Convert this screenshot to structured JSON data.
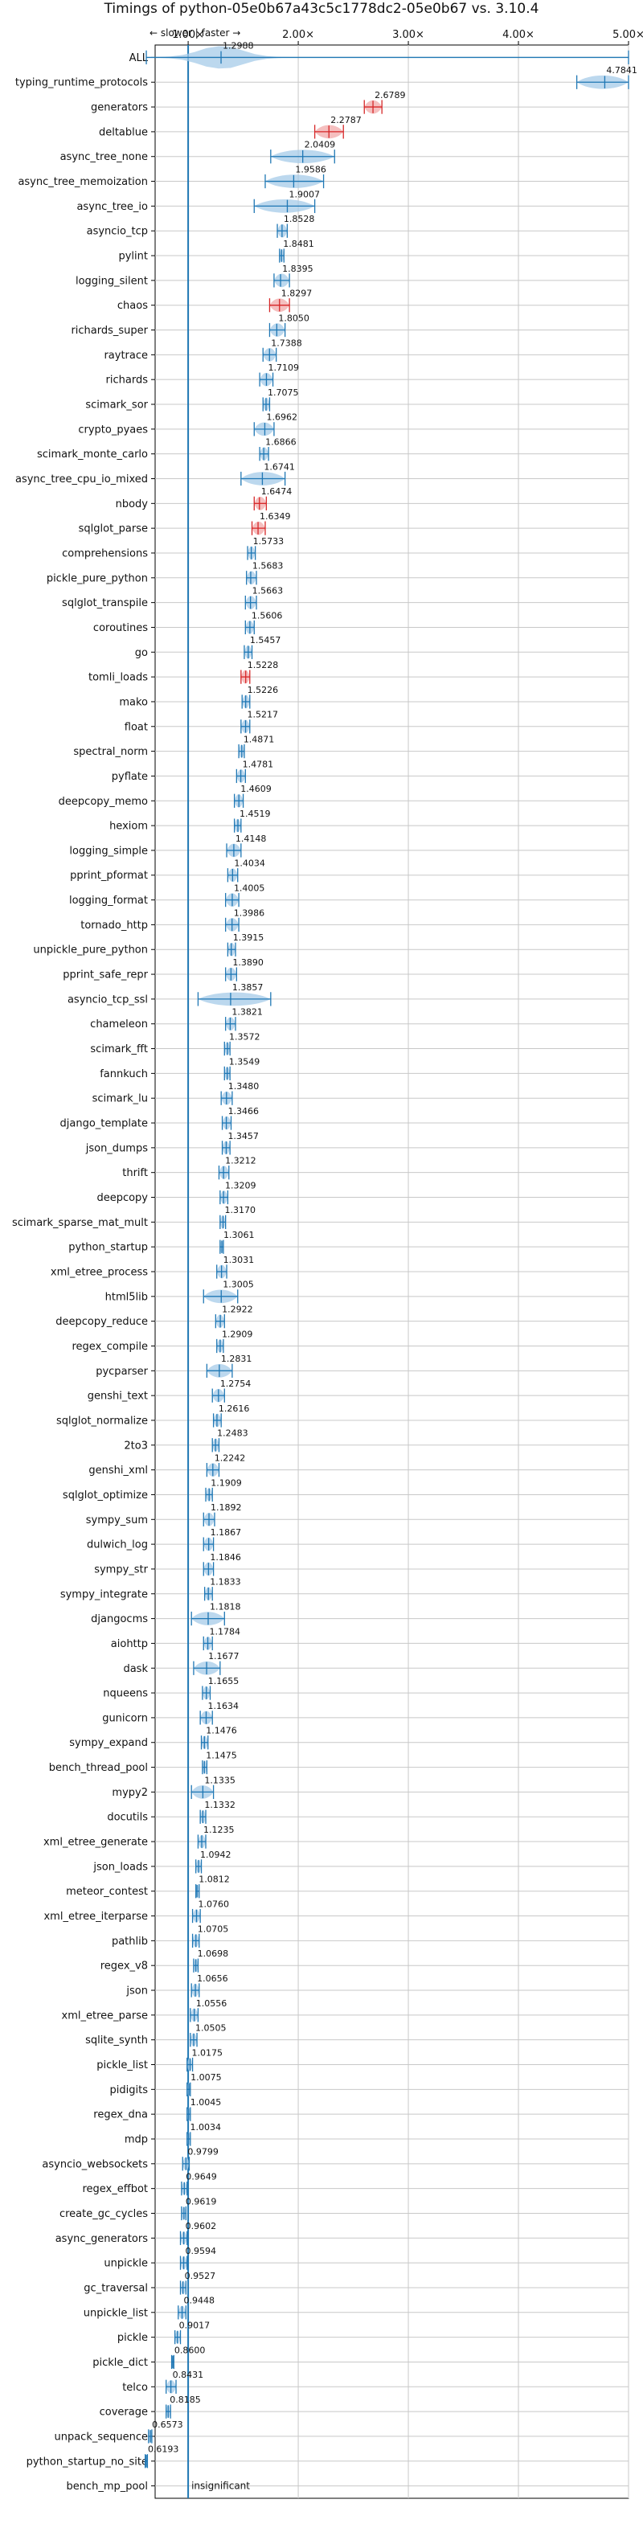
{
  "title": "Timings of python-05e0b67a43c5c1778dc2-05e0b67 vs. 3.10.4",
  "direction_label": "← slower | faster →",
  "chart_data": {
    "type": "violin",
    "title": "Timings of python-05e0b67a43c5c1778dc2-05e0b67 vs. 3.10.4",
    "orientation": "horizontal",
    "xlabel": "",
    "ylabel": "",
    "xlim": [
      0.7,
      5.0
    ],
    "x_ticks": [
      1.0,
      2.0,
      3.0,
      4.0,
      5.0
    ],
    "x_tick_labels": [
      "1.00×",
      "2.00×",
      "3.00×",
      "4.00×",
      "5.00×"
    ],
    "x_axis_position": "top",
    "reference_line": 1.0,
    "grid": true,
    "colors": {
      "normal": "#1f77b4",
      "slower": "#d62728",
      "fill": "#a6cbe8",
      "fill_slower": "#f2a9a9"
    },
    "benchmarks": [
      {
        "name": "ALL",
        "value": 1.2988,
        "label": "1.2988",
        "min": 0.62,
        "max": 5.0,
        "violin": "all"
      },
      {
        "name": "typing_runtime_protocols",
        "value": 4.7841,
        "label": "4.7841",
        "min": 4.53,
        "max": 5.0
      },
      {
        "name": "generators",
        "value": 2.6789,
        "label": "2.6789",
        "min": 2.6,
        "max": 2.76,
        "slower": true
      },
      {
        "name": "deltablue",
        "value": 2.2787,
        "label": "2.2787",
        "min": 2.15,
        "max": 2.41,
        "slower": true
      },
      {
        "name": "async_tree_none",
        "value": 2.0409,
        "label": "2.0409",
        "min": 1.75,
        "max": 2.33
      },
      {
        "name": "async_tree_memoization",
        "value": 1.9586,
        "label": "1.9586",
        "min": 1.7,
        "max": 2.23
      },
      {
        "name": "async_tree_io",
        "value": 1.9007,
        "label": "1.9007",
        "min": 1.6,
        "max": 2.15
      },
      {
        "name": "asyncio_tcp",
        "value": 1.8528,
        "label": "1.8528",
        "min": 1.81,
        "max": 1.9
      },
      {
        "name": "pylint",
        "value": 1.8481,
        "label": "1.8481",
        "min": 1.83,
        "max": 1.87
      },
      {
        "name": "logging_silent",
        "value": 1.8395,
        "label": "1.8395",
        "min": 1.78,
        "max": 1.92
      },
      {
        "name": "chaos",
        "value": 1.8297,
        "label": "1.8297",
        "min": 1.74,
        "max": 1.92,
        "slower": true
      },
      {
        "name": "richards_super",
        "value": 1.805,
        "label": "1.8050",
        "min": 1.74,
        "max": 1.88
      },
      {
        "name": "raytrace",
        "value": 1.7388,
        "label": "1.7388",
        "min": 1.68,
        "max": 1.8
      },
      {
        "name": "richards",
        "value": 1.7109,
        "label": "1.7109",
        "min": 1.65,
        "max": 1.77
      },
      {
        "name": "scimark_sor",
        "value": 1.7075,
        "label": "1.7075",
        "min": 1.68,
        "max": 1.74
      },
      {
        "name": "crypto_pyaes",
        "value": 1.6962,
        "label": "1.6962",
        "min": 1.6,
        "max": 1.78
      },
      {
        "name": "scimark_monte_carlo",
        "value": 1.6866,
        "label": "1.6866",
        "min": 1.65,
        "max": 1.73
      },
      {
        "name": "async_tree_cpu_io_mixed",
        "value": 1.6741,
        "label": "1.6741",
        "min": 1.48,
        "max": 1.88
      },
      {
        "name": "nbody",
        "value": 1.6474,
        "label": "1.6474",
        "min": 1.6,
        "max": 1.71,
        "slower": true
      },
      {
        "name": "sqlglot_parse",
        "value": 1.6349,
        "label": "1.6349",
        "min": 1.58,
        "max": 1.7,
        "slower": true
      },
      {
        "name": "comprehensions",
        "value": 1.5733,
        "label": "1.5733",
        "min": 1.54,
        "max": 1.61
      },
      {
        "name": "pickle_pure_python",
        "value": 1.5683,
        "label": "1.5683",
        "min": 1.53,
        "max": 1.62
      },
      {
        "name": "sqlglot_transpile",
        "value": 1.5663,
        "label": "1.5663",
        "min": 1.52,
        "max": 1.62
      },
      {
        "name": "coroutines",
        "value": 1.5606,
        "label": "1.5606",
        "min": 1.52,
        "max": 1.6
      },
      {
        "name": "go",
        "value": 1.5457,
        "label": "1.5457",
        "min": 1.51,
        "max": 1.58
      },
      {
        "name": "tomli_loads",
        "value": 1.5228,
        "label": "1.5228",
        "min": 1.48,
        "max": 1.56,
        "slower": true
      },
      {
        "name": "mako",
        "value": 1.5226,
        "label": "1.5226",
        "min": 1.49,
        "max": 1.56
      },
      {
        "name": "float",
        "value": 1.5217,
        "label": "1.5217",
        "min": 1.48,
        "max": 1.56
      },
      {
        "name": "spectral_norm",
        "value": 1.4871,
        "label": "1.4871",
        "min": 1.46,
        "max": 1.51
      },
      {
        "name": "pyflate",
        "value": 1.4781,
        "label": "1.4781",
        "min": 1.44,
        "max": 1.52
      },
      {
        "name": "deepcopy_memo",
        "value": 1.4609,
        "label": "1.4609",
        "min": 1.42,
        "max": 1.5
      },
      {
        "name": "hexiom",
        "value": 1.4519,
        "label": "1.4519",
        "min": 1.42,
        "max": 1.48
      },
      {
        "name": "logging_simple",
        "value": 1.4148,
        "label": "1.4148",
        "min": 1.35,
        "max": 1.48
      },
      {
        "name": "pprint_pformat",
        "value": 1.4034,
        "label": "1.4034",
        "min": 1.36,
        "max": 1.45
      },
      {
        "name": "logging_format",
        "value": 1.4005,
        "label": "1.4005",
        "min": 1.34,
        "max": 1.46
      },
      {
        "name": "tornado_http",
        "value": 1.3986,
        "label": "1.3986",
        "min": 1.34,
        "max": 1.46
      },
      {
        "name": "unpickle_pure_python",
        "value": 1.3915,
        "label": "1.3915",
        "min": 1.36,
        "max": 1.43
      },
      {
        "name": "pprint_safe_repr",
        "value": 1.389,
        "label": "1.3890",
        "min": 1.34,
        "max": 1.44
      },
      {
        "name": "asyncio_tcp_ssl",
        "value": 1.3857,
        "label": "1.3857",
        "min": 1.09,
        "max": 1.75
      },
      {
        "name": "chameleon",
        "value": 1.3821,
        "label": "1.3821",
        "min": 1.34,
        "max": 1.43
      },
      {
        "name": "scimark_fft",
        "value": 1.3572,
        "label": "1.3572",
        "min": 1.33,
        "max": 1.38
      },
      {
        "name": "fannkuch",
        "value": 1.3549,
        "label": "1.3549",
        "min": 1.33,
        "max": 1.38
      },
      {
        "name": "scimark_lu",
        "value": 1.348,
        "label": "1.3480",
        "min": 1.3,
        "max": 1.4
      },
      {
        "name": "django_template",
        "value": 1.3466,
        "label": "1.3466",
        "min": 1.31,
        "max": 1.39
      },
      {
        "name": "json_dumps",
        "value": 1.3457,
        "label": "1.3457",
        "min": 1.31,
        "max": 1.38
      },
      {
        "name": "thrift",
        "value": 1.3212,
        "label": "1.3212",
        "min": 1.28,
        "max": 1.37
      },
      {
        "name": "deepcopy",
        "value": 1.3209,
        "label": "1.3209",
        "min": 1.29,
        "max": 1.36
      },
      {
        "name": "scimark_sparse_mat_mult",
        "value": 1.317,
        "label": "1.3170",
        "min": 1.29,
        "max": 1.34
      },
      {
        "name": "python_startup",
        "value": 1.3061,
        "label": "1.3061",
        "min": 1.29,
        "max": 1.32
      },
      {
        "name": "xml_etree_process",
        "value": 1.3031,
        "label": "1.3031",
        "min": 1.26,
        "max": 1.35
      },
      {
        "name": "html5lib",
        "value": 1.3005,
        "label": "1.3005",
        "min": 1.14,
        "max": 1.45
      },
      {
        "name": "deepcopy_reduce",
        "value": 1.2922,
        "label": "1.2922",
        "min": 1.25,
        "max": 1.33
      },
      {
        "name": "regex_compile",
        "value": 1.2909,
        "label": "1.2909",
        "min": 1.26,
        "max": 1.32
      },
      {
        "name": "pycparser",
        "value": 1.2831,
        "label": "1.2831",
        "min": 1.17,
        "max": 1.4
      },
      {
        "name": "genshi_text",
        "value": 1.2754,
        "label": "1.2754",
        "min": 1.22,
        "max": 1.33
      },
      {
        "name": "sqlglot_normalize",
        "value": 1.2616,
        "label": "1.2616",
        "min": 1.23,
        "max": 1.3
      },
      {
        "name": "2to3",
        "value": 1.2483,
        "label": "1.2483",
        "min": 1.22,
        "max": 1.28
      },
      {
        "name": "genshi_xml",
        "value": 1.2242,
        "label": "1.2242",
        "min": 1.17,
        "max": 1.28
      },
      {
        "name": "sqlglot_optimize",
        "value": 1.1909,
        "label": "1.1909",
        "min": 1.16,
        "max": 1.22
      },
      {
        "name": "sympy_sum",
        "value": 1.1892,
        "label": "1.1892",
        "min": 1.14,
        "max": 1.24
      },
      {
        "name": "dulwich_log",
        "value": 1.1867,
        "label": "1.1867",
        "min": 1.14,
        "max": 1.23
      },
      {
        "name": "sympy_str",
        "value": 1.1846,
        "label": "1.1846",
        "min": 1.14,
        "max": 1.23
      },
      {
        "name": "sympy_integrate",
        "value": 1.1833,
        "label": "1.1833",
        "min": 1.15,
        "max": 1.22
      },
      {
        "name": "djangocms",
        "value": 1.1818,
        "label": "1.1818",
        "min": 1.03,
        "max": 1.33
      },
      {
        "name": "aiohttp",
        "value": 1.1784,
        "label": "1.1784",
        "min": 1.14,
        "max": 1.22
      },
      {
        "name": "dask",
        "value": 1.1677,
        "label": "1.1677",
        "min": 1.05,
        "max": 1.29
      },
      {
        "name": "nqueens",
        "value": 1.1655,
        "label": "1.1655",
        "min": 1.13,
        "max": 1.2
      },
      {
        "name": "gunicorn",
        "value": 1.1634,
        "label": "1.1634",
        "min": 1.11,
        "max": 1.22
      },
      {
        "name": "sympy_expand",
        "value": 1.1476,
        "label": "1.1476",
        "min": 1.12,
        "max": 1.18
      },
      {
        "name": "bench_thread_pool",
        "value": 1.1475,
        "label": "1.1475",
        "min": 1.13,
        "max": 1.17
      },
      {
        "name": "mypy2",
        "value": 1.1335,
        "label": "1.1335",
        "min": 1.03,
        "max": 1.23
      },
      {
        "name": "docutils",
        "value": 1.1332,
        "label": "1.1332",
        "min": 1.11,
        "max": 1.16
      },
      {
        "name": "xml_etree_generate",
        "value": 1.1235,
        "label": "1.1235",
        "min": 1.09,
        "max": 1.16
      },
      {
        "name": "json_loads",
        "value": 1.0942,
        "label": "1.0942",
        "min": 1.07,
        "max": 1.12
      },
      {
        "name": "meteor_contest",
        "value": 1.0812,
        "label": "1.0812",
        "min": 1.07,
        "max": 1.1
      },
      {
        "name": "xml_etree_iterparse",
        "value": 1.076,
        "label": "1.0760",
        "min": 1.04,
        "max": 1.11
      },
      {
        "name": "pathlib",
        "value": 1.0705,
        "label": "1.0705",
        "min": 1.04,
        "max": 1.1
      },
      {
        "name": "regex_v8",
        "value": 1.0698,
        "label": "1.0698",
        "min": 1.05,
        "max": 1.09
      },
      {
        "name": "json",
        "value": 1.0656,
        "label": "1.0656",
        "min": 1.03,
        "max": 1.1
      },
      {
        "name": "xml_etree_parse",
        "value": 1.0556,
        "label": "1.0556",
        "min": 1.02,
        "max": 1.09
      },
      {
        "name": "sqlite_synth",
        "value": 1.0505,
        "label": "1.0505",
        "min": 1.02,
        "max": 1.08
      },
      {
        "name": "pickle_list",
        "value": 1.0175,
        "label": "1.0175",
        "min": 0.99,
        "max": 1.04
      },
      {
        "name": "pidigits",
        "value": 1.0075,
        "label": "1.0075",
        "min": 0.99,
        "max": 1.02
      },
      {
        "name": "regex_dna",
        "value": 1.0045,
        "label": "1.0045",
        "min": 0.99,
        "max": 1.02
      },
      {
        "name": "mdp",
        "value": 1.0034,
        "label": "1.0034",
        "min": 0.99,
        "max": 1.02
      },
      {
        "name": "asyncio_websockets",
        "value": 0.9799,
        "label": "0.9799",
        "min": 0.95,
        "max": 1.01
      },
      {
        "name": "regex_effbot",
        "value": 0.9649,
        "label": "0.9649",
        "min": 0.94,
        "max": 0.99
      },
      {
        "name": "create_gc_cycles",
        "value": 0.9619,
        "label": "0.9619",
        "min": 0.94,
        "max": 0.98
      },
      {
        "name": "async_generators",
        "value": 0.9602,
        "label": "0.9602",
        "min": 0.93,
        "max": 0.99
      },
      {
        "name": "unpickle",
        "value": 0.9594,
        "label": "0.9594",
        "min": 0.93,
        "max": 0.99
      },
      {
        "name": "gc_traversal",
        "value": 0.9527,
        "label": "0.9527",
        "min": 0.93,
        "max": 0.98
      },
      {
        "name": "unpickle_list",
        "value": 0.9448,
        "label": "0.9448",
        "min": 0.91,
        "max": 0.98
      },
      {
        "name": "pickle",
        "value": 0.9017,
        "label": "0.9017",
        "min": 0.88,
        "max": 0.93
      },
      {
        "name": "pickle_dict",
        "value": 0.86,
        "label": "0.8600",
        "min": 0.85,
        "max": 0.87
      },
      {
        "name": "telco",
        "value": 0.8431,
        "label": "0.8431",
        "min": 0.8,
        "max": 0.89
      },
      {
        "name": "coverage",
        "value": 0.8185,
        "label": "0.8185",
        "min": 0.8,
        "max": 0.84
      },
      {
        "name": "unpack_sequence",
        "value": 0.6573,
        "label": "0.6573",
        "min": 0.64,
        "max": 0.67
      },
      {
        "name": "python_startup_no_site",
        "value": 0.6193,
        "label": "0.6193",
        "min": 0.61,
        "max": 0.63
      },
      {
        "name": "bench_mp_pool",
        "value": null,
        "label": "insignificant"
      }
    ]
  }
}
